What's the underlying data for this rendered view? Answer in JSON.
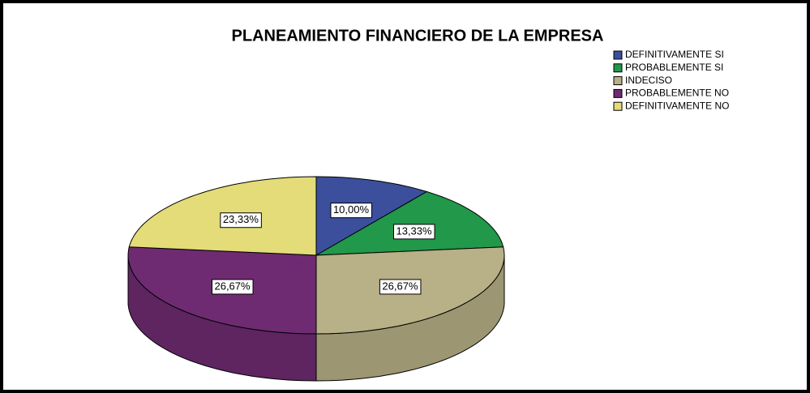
{
  "chart_data": {
    "type": "pie",
    "title": "PLANEAMIENTO FINANCIERO DE LA EMPRESA",
    "categories": [
      "DEFINITIVAMENTE SI",
      "PROBABLEMENTE SI",
      "INDECISO",
      "PROBABLEMENTE NO",
      "DEFINITIVAMENTE NO"
    ],
    "values": [
      10,
      13.33,
      26.67,
      26.67,
      23.33
    ],
    "value_labels": [
      "10,00%",
      "13,33%",
      "26,67%",
      "26,67%",
      "23,33%"
    ],
    "colors": [
      "#3b4f9c",
      "#21984a",
      "#b8b086",
      "#6e2b72",
      "#e3dc78"
    ],
    "legend": "top-right"
  }
}
